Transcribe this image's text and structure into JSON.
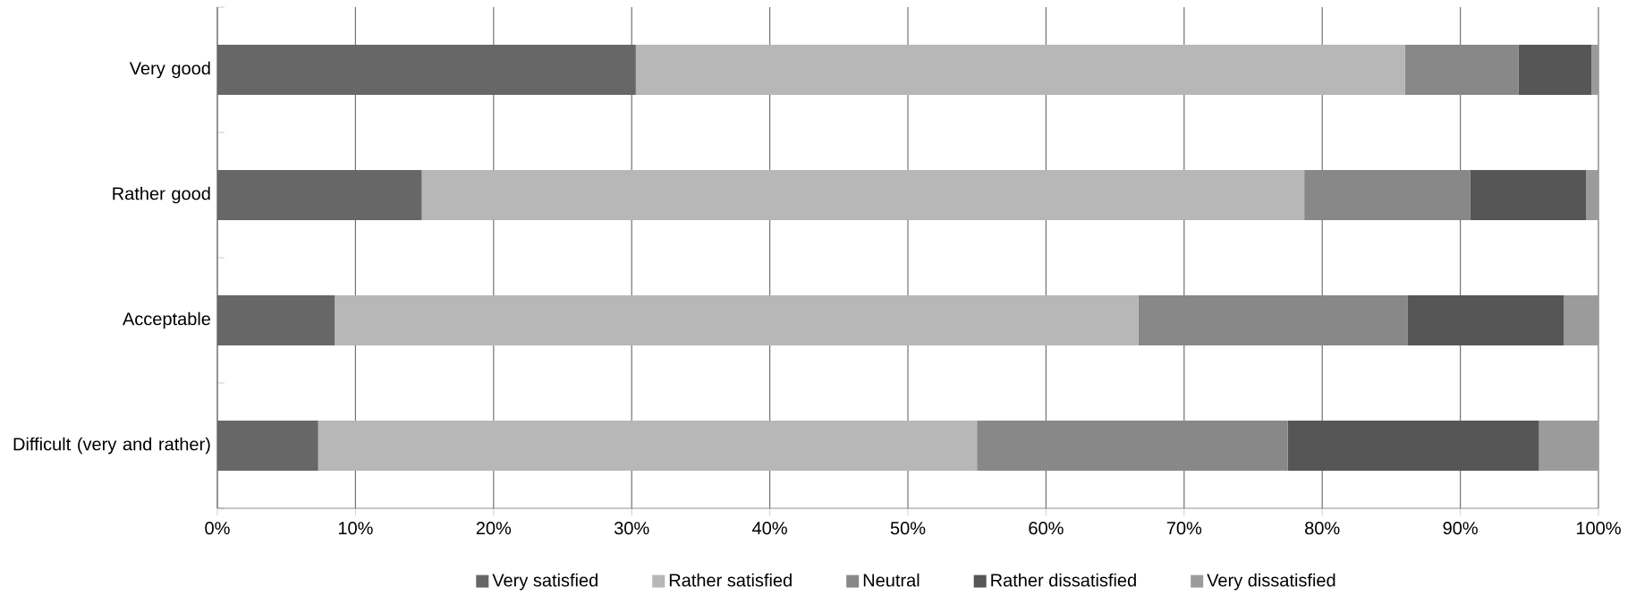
{
  "chart_data": {
    "type": "bar",
    "orientation": "horizontal",
    "stacked": true,
    "categories": [
      "Very good",
      "Rather good",
      "Acceptable",
      "Difficult (very and rather)"
    ],
    "series": [
      {
        "name": "Very satisfied",
        "color": "#676767",
        "values": [
          30.3,
          14.8,
          8.5,
          7.3
        ]
      },
      {
        "name": "Rather satisfied",
        "color": "#b7b7b7",
        "values": [
          55.7,
          63.9,
          58.2,
          47.7
        ]
      },
      {
        "name": "Neutral",
        "color": "#888888",
        "values": [
          8.2,
          12.0,
          19.5,
          22.5
        ]
      },
      {
        "name": "Rather dissatisfied",
        "color": "#565656",
        "values": [
          5.3,
          8.4,
          11.3,
          18.2
        ]
      },
      {
        "name": "Very dissatisfied",
        "color": "#9b9b9b",
        "values": [
          0.5,
          0.9,
          2.5,
          4.3
        ]
      }
    ],
    "xlim": [
      0,
      100
    ],
    "xticks": [
      {
        "value": 0,
        "label": "0%"
      },
      {
        "value": 10,
        "label": "10%"
      },
      {
        "value": 20,
        "label": "20%"
      },
      {
        "value": 30,
        "label": "30%"
      },
      {
        "value": 40,
        "label": "40%"
      },
      {
        "value": 50,
        "label": "50%"
      },
      {
        "value": 60,
        "label": "60%"
      },
      {
        "value": 70,
        "label": "70%"
      },
      {
        "value": 80,
        "label": "80%"
      },
      {
        "value": 90,
        "label": "90%"
      },
      {
        "value": 100,
        "label": "100%"
      }
    ],
    "grid": "x",
    "legend": "bottom"
  }
}
